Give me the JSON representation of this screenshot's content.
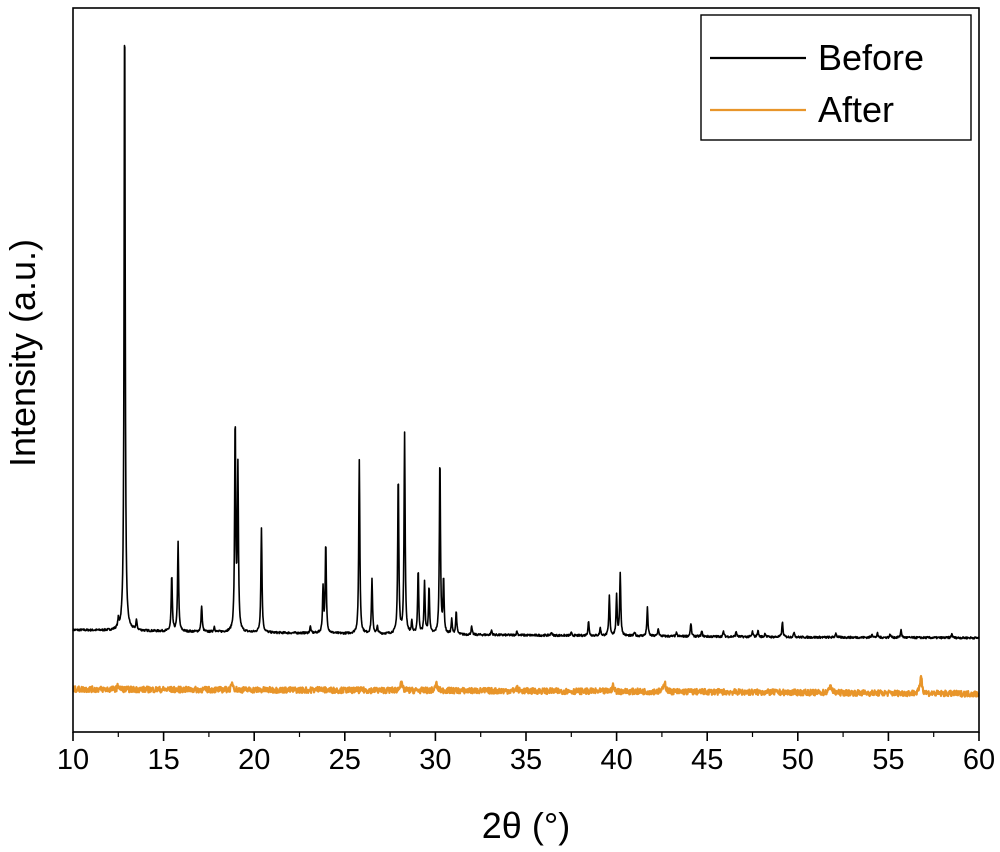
{
  "chart_data": {
    "type": "line",
    "title": "",
    "xlabel": "2θ (°)",
    "ylabel": "Intensity (a.u.)",
    "xlim": [
      10,
      60
    ],
    "xticks": [
      10,
      15,
      20,
      25,
      30,
      35,
      40,
      45,
      50,
      55,
      60
    ],
    "yticks_shown": false,
    "grid": false,
    "legend": {
      "position": "top-right",
      "entries": [
        "Before",
        "After"
      ]
    },
    "series": [
      {
        "name": "Before",
        "color": "#000000",
        "baseline": [
          [
            10,
            0.055
          ],
          [
            20,
            0.051
          ],
          [
            30,
            0.048
          ],
          [
            40,
            0.046
          ],
          [
            50,
            0.044
          ],
          [
            60,
            0.043
          ]
        ],
        "peaks": [
          {
            "x": 12.5,
            "y": 0.012
          },
          {
            "x": 12.85,
            "y": 0.96
          },
          {
            "x": 13.5,
            "y": 0.015
          },
          {
            "x": 15.45,
            "y": 0.085
          },
          {
            "x": 15.8,
            "y": 0.135
          },
          {
            "x": 17.1,
            "y": 0.04
          },
          {
            "x": 17.8,
            "y": 0.008
          },
          {
            "x": 18.95,
            "y": 0.322
          },
          {
            "x": 19.1,
            "y": 0.245
          },
          {
            "x": 20.4,
            "y": 0.16
          },
          {
            "x": 23.1,
            "y": 0.01
          },
          {
            "x": 23.8,
            "y": 0.068
          },
          {
            "x": 23.95,
            "y": 0.137
          },
          {
            "x": 25.8,
            "y": 0.265
          },
          {
            "x": 26.5,
            "y": 0.082
          },
          {
            "x": 26.8,
            "y": 0.01
          },
          {
            "x": 27.95,
            "y": 0.242
          },
          {
            "x": 28.3,
            "y": 0.303
          },
          {
            "x": 28.7,
            "y": 0.018
          },
          {
            "x": 29.05,
            "y": 0.098
          },
          {
            "x": 29.4,
            "y": 0.078
          },
          {
            "x": 29.65,
            "y": 0.072
          },
          {
            "x": 30.25,
            "y": 0.27
          },
          {
            "x": 30.45,
            "y": 0.082
          },
          {
            "x": 30.9,
            "y": 0.022
          },
          {
            "x": 31.15,
            "y": 0.035
          },
          {
            "x": 32.0,
            "y": 0.012
          },
          {
            "x": 33.1,
            "y": 0.007
          },
          {
            "x": 34.5,
            "y": 0.006
          },
          {
            "x": 36.4,
            "y": 0.005
          },
          {
            "x": 37.5,
            "y": 0.004
          },
          {
            "x": 38.45,
            "y": 0.022
          },
          {
            "x": 39.1,
            "y": 0.012
          },
          {
            "x": 39.6,
            "y": 0.06
          },
          {
            "x": 40.0,
            "y": 0.06
          },
          {
            "x": 40.2,
            "y": 0.095
          },
          {
            "x": 41.0,
            "y": 0.006
          },
          {
            "x": 41.7,
            "y": 0.043
          },
          {
            "x": 42.3,
            "y": 0.012
          },
          {
            "x": 43.3,
            "y": 0.005
          },
          {
            "x": 44.1,
            "y": 0.02
          },
          {
            "x": 44.7,
            "y": 0.008
          },
          {
            "x": 45.9,
            "y": 0.008
          },
          {
            "x": 46.6,
            "y": 0.008
          },
          {
            "x": 47.5,
            "y": 0.008
          },
          {
            "x": 47.8,
            "y": 0.01
          },
          {
            "x": 48.2,
            "y": 0.006
          },
          {
            "x": 49.15,
            "y": 0.023
          },
          {
            "x": 49.8,
            "y": 0.008
          },
          {
            "x": 52.1,
            "y": 0.007
          },
          {
            "x": 54.1,
            "y": 0.006
          },
          {
            "x": 54.4,
            "y": 0.006
          },
          {
            "x": 55.1,
            "y": 0.005
          },
          {
            "x": 55.7,
            "y": 0.012
          },
          {
            "x": 58.5,
            "y": 0.006
          }
        ]
      },
      {
        "name": "After",
        "color": "#e8952a",
        "baseline": [
          [
            10,
            -0.035
          ],
          [
            30,
            -0.037
          ],
          [
            45,
            -0.039
          ],
          [
            60,
            -0.042
          ]
        ],
        "peaks": [
          {
            "x": 12.5,
            "y": 0.006
          },
          {
            "x": 18.8,
            "y": 0.01
          },
          {
            "x": 23.6,
            "y": 0.004
          },
          {
            "x": 28.1,
            "y": 0.014
          },
          {
            "x": 30.05,
            "y": 0.01
          },
          {
            "x": 34.5,
            "y": 0.004
          },
          {
            "x": 39.8,
            "y": 0.008
          },
          {
            "x": 42.65,
            "y": 0.016
          },
          {
            "x": 51.8,
            "y": 0.013
          },
          {
            "x": 56.8,
            "y": 0.028
          }
        ]
      }
    ]
  }
}
